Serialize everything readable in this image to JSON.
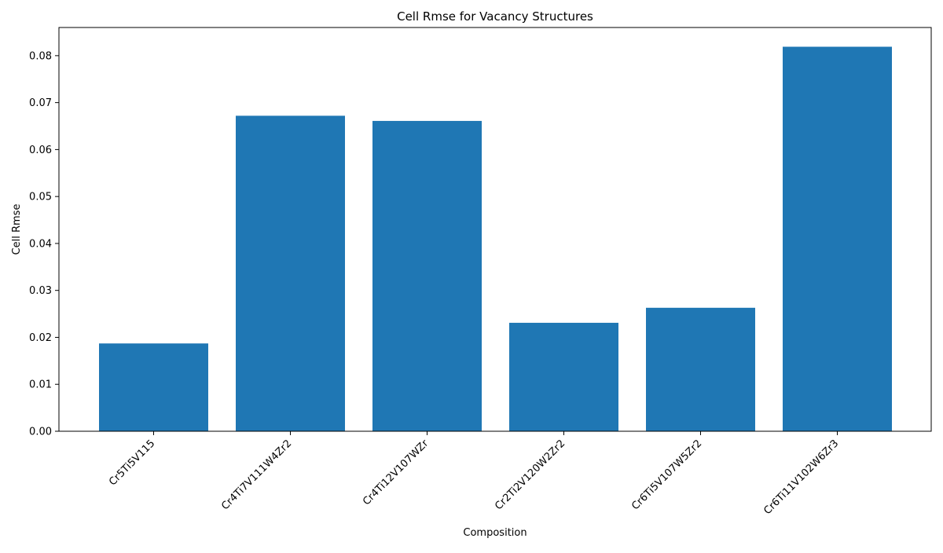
{
  "chart_data": {
    "type": "bar",
    "title": "Cell Rmse for Vacancy Structures",
    "xlabel": "Composition",
    "ylabel": "Cell Rmse",
    "categories": [
      "Cr5Ti5V115",
      "Cr4Ti7V111W4Zr2",
      "Cr4Ti12V107WZr",
      "Cr2Ti2V120W2Zr2",
      "Cr6Ti5V107W5Zr2",
      "Cr6Ti11V102W6Zr3"
    ],
    "values": [
      0.0187,
      0.0672,
      0.0661,
      0.0231,
      0.0263,
      0.0819
    ],
    "ylim": [
      0,
      0.086
    ],
    "yticks": [
      0.0,
      0.01,
      0.02,
      0.03,
      0.04,
      0.05,
      0.06,
      0.07,
      0.08
    ],
    "ytick_labels": [
      "0.00",
      "0.01",
      "0.02",
      "0.03",
      "0.04",
      "0.05",
      "0.06",
      "0.07",
      "0.08"
    ],
    "bar_color": "#1f77b4",
    "grid": false,
    "legend": "none"
  }
}
